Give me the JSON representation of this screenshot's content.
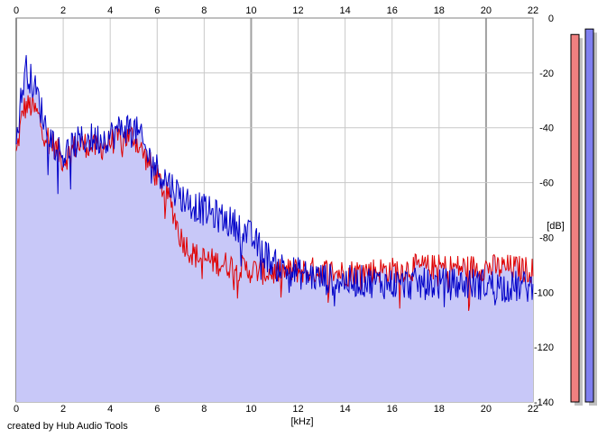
{
  "credit": "created by Hub Audio Tools",
  "colors": {
    "background": "#ffffff",
    "grid": "#c8c8c8",
    "grid_major": "#a0a0a0",
    "fill": "#c8c8f8",
    "series_red": "#e00000",
    "series_blue": "#0000c8",
    "meter_red": "#f08080",
    "meter_blue": "#8080f0",
    "meter_shadow": "#c0c0c0"
  },
  "chart_data": {
    "type": "line",
    "title": "",
    "xlabel": "[kHz]",
    "ylabel": "[dB]",
    "xlim": [
      0,
      22
    ],
    "ylim": [
      -140,
      0
    ],
    "x_ticks": [
      "0",
      "2",
      "4",
      "6",
      "8",
      "10",
      "12",
      "14",
      "16",
      "18",
      "20",
      "22"
    ],
    "y_ticks": [
      "0",
      "-20",
      "-40",
      "-60",
      "-80",
      "-100",
      "-120",
      "-140"
    ],
    "grid": true,
    "filled_under": true,
    "series": [
      {
        "color": "red",
        "x": [
          0,
          0.3,
          0.6,
          0.9,
          1.2,
          1.5,
          2.0,
          2.5,
          3.0,
          3.5,
          4.0,
          4.5,
          5.0,
          5.3,
          5.6,
          6.0,
          6.3,
          6.6,
          7.0,
          7.5,
          8.0,
          9.0,
          10.0,
          11.0,
          12.0,
          13.0,
          14.0,
          15.0,
          16.0,
          17.0,
          18.0,
          19.0,
          20.0,
          21.0,
          22.0
        ],
        "y": [
          -50,
          -33,
          -32,
          -35,
          -42,
          -45,
          -52,
          -47,
          -46,
          -48,
          -45,
          -44,
          -43,
          -48,
          -52,
          -58,
          -63,
          -68,
          -80,
          -86,
          -88,
          -90,
          -92,
          -93,
          -92,
          -92,
          -93,
          -92,
          -92,
          -91,
          -91,
          -91,
          -91,
          -91,
          -92
        ]
      },
      {
        "color": "blue",
        "x": [
          0,
          0.2,
          0.4,
          0.6,
          0.9,
          1.2,
          1.5,
          2.0,
          2.5,
          3.0,
          3.5,
          4.0,
          4.5,
          5.0,
          5.3,
          5.6,
          6.0,
          6.5,
          7.0,
          7.5,
          8.0,
          8.5,
          9.0,
          9.5,
          10.0,
          10.5,
          11.0,
          12.0,
          13.0,
          14.0,
          15.0,
          16.0,
          17.0,
          18.0,
          19.0,
          20.0,
          21.0,
          22.0
        ],
        "y": [
          -45,
          -30,
          -18,
          -22,
          -28,
          -38,
          -44,
          -50,
          -46,
          -44,
          -44,
          -43,
          -40,
          -40,
          -44,
          -50,
          -55,
          -60,
          -65,
          -68,
          -70,
          -72,
          -74,
          -76,
          -80,
          -85,
          -90,
          -93,
          -95,
          -96,
          -96,
          -97,
          -97,
          -97,
          -97,
          -97,
          -98,
          -98
        ]
      }
    ],
    "level_meters": [
      {
        "color": "red",
        "level_db": -6
      },
      {
        "color": "blue",
        "level_db": -4
      }
    ]
  }
}
